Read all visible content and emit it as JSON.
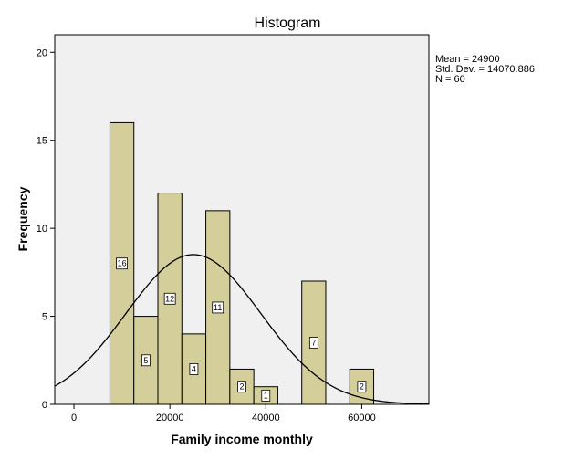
{
  "chart_data": {
    "type": "bar",
    "subtype": "histogram",
    "title": "Histogram",
    "xlabel": "Family income monthly",
    "ylabel": "Frequency",
    "xlim": [
      -4000,
      74000
    ],
    "ylim": [
      0,
      21
    ],
    "x_ticks": [
      0,
      20000,
      40000,
      60000
    ],
    "y_ticks": [
      0,
      5,
      10,
      15,
      20
    ],
    "bins": [
      {
        "start": 7500,
        "end": 12500,
        "value": 16
      },
      {
        "start": 12500,
        "end": 17500,
        "value": 5
      },
      {
        "start": 17500,
        "end": 22500,
        "value": 12
      },
      {
        "start": 22500,
        "end": 27500,
        "value": 4
      },
      {
        "start": 27500,
        "end": 32500,
        "value": 11
      },
      {
        "start": 32500,
        "end": 37500,
        "value": 2
      },
      {
        "start": 37500,
        "end": 42500,
        "value": 1
      },
      {
        "start": 47500,
        "end": 52500,
        "value": 7
      },
      {
        "start": 57500,
        "end": 62500,
        "value": 2
      }
    ],
    "normal_curve": {
      "mean": 24900,
      "std": 14070.886,
      "n": 60,
      "bin_width": 5000
    },
    "stats": [
      "Mean = 24900",
      "Std. Dev. = 14070.886",
      "N = 60"
    ],
    "grid": false,
    "colors": {
      "bar_fill": "#d4cf9a",
      "bar_stroke": "#000000",
      "plot_bg": "#f0f0f0",
      "curve": "#000000"
    }
  }
}
